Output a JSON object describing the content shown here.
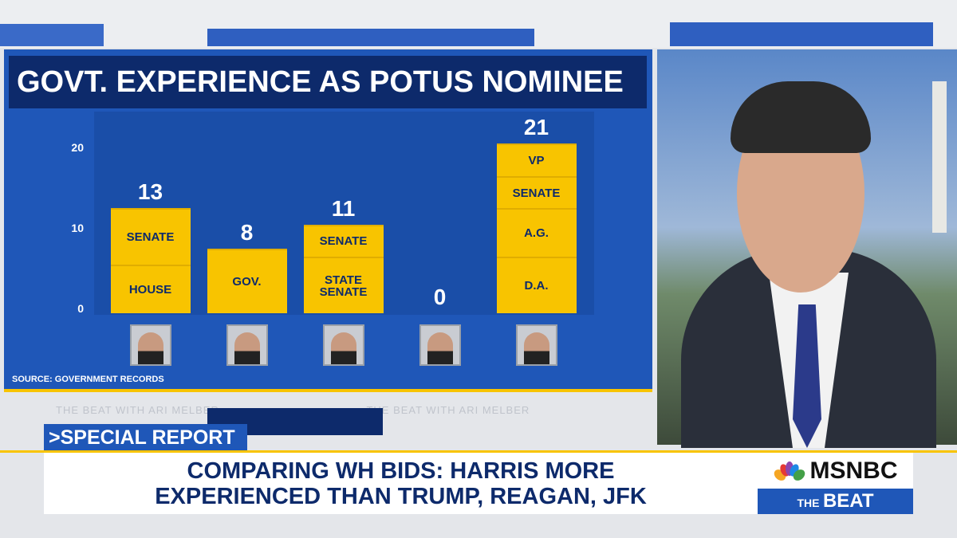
{
  "chart_data": {
    "type": "bar",
    "stacked": true,
    "title": "GOVT. EXPERIENCE AS POTUS NOMINEE",
    "categories": [
      null,
      null,
      null,
      null,
      null
    ],
    "series": [
      {
        "name": "HOUSE",
        "color": "#f8c400",
        "values": [
          6,
          null,
          null,
          null,
          null
        ]
      },
      {
        "name": "STATE SENATE",
        "color": "#f8c400",
        "values": [
          null,
          null,
          7,
          null,
          null
        ]
      },
      {
        "name": "D.A.",
        "color": "#f8c400",
        "values": [
          null,
          null,
          null,
          null,
          7
        ]
      },
      {
        "name": "A.G.",
        "color": "#f8c400",
        "values": [
          null,
          null,
          null,
          null,
          6
        ]
      },
      {
        "name": "GOV.",
        "color": "#f8c400",
        "values": [
          null,
          8,
          null,
          null,
          null
        ]
      },
      {
        "name": "SENATE",
        "color": "#f8c400",
        "values": [
          7,
          null,
          4,
          null,
          4
        ]
      },
      {
        "name": "VP",
        "color": "#f8c400",
        "values": [
          null,
          null,
          null,
          null,
          4
        ]
      }
    ],
    "totals": [
      13,
      8,
      11,
      0,
      21
    ],
    "ylim": [
      0,
      25
    ],
    "yticks": [
      0,
      10,
      20
    ],
    "grid": false,
    "source": "SOURCE: GOVERNMENT RECORDS"
  },
  "banner": {
    "tag": ">SPECIAL REPORT",
    "headline": [
      "COMPARING WH BIDS: HARRIS MORE",
      "EXPERIENCED THAN TRUMP, REAGAN, JFK"
    ]
  },
  "logo": {
    "network": "MSNBC",
    "show_prefix": "THE",
    "show": "BEAT"
  },
  "ticker": "THE BEAT WITH ARI MELBER"
}
